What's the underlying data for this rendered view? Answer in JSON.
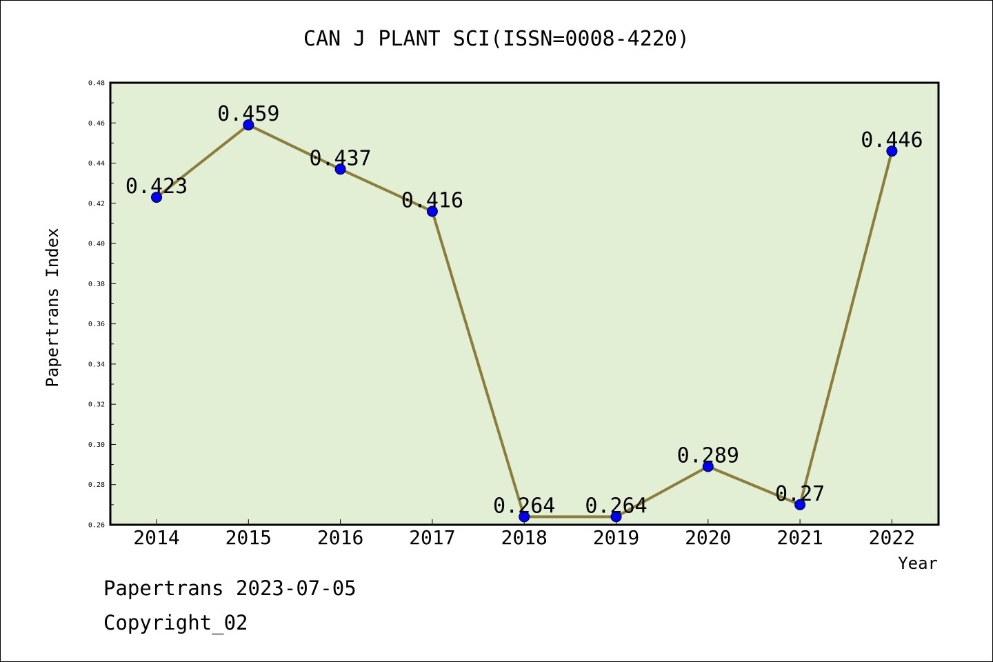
{
  "chart_data": {
    "type": "line",
    "title": "CAN J PLANT SCI(ISSN=0008-4220)",
    "xlabel": "Year",
    "ylabel": "Papertrans Index",
    "categories": [
      "2014",
      "2015",
      "2016",
      "2017",
      "2018",
      "2019",
      "2020",
      "2021",
      "2022"
    ],
    "values": [
      0.423,
      0.459,
      0.437,
      0.416,
      0.264,
      0.264,
      0.289,
      0.27,
      0.446
    ],
    "data_labels": [
      "0.423",
      "0.459",
      "0.437",
      "0.416",
      "0.264",
      "0.264",
      "0.289",
      "0.27",
      "0.446"
    ],
    "ylim": [
      0.26,
      0.48
    ],
    "yticks": [
      "0.26",
      "0.28",
      "0.30",
      "0.32",
      "0.34",
      "0.36",
      "0.38",
      "0.40",
      "0.42",
      "0.44",
      "0.46",
      "0.48"
    ],
    "grid": false,
    "legend": "none",
    "colors": {
      "plot_background": "#e2efd5",
      "line": "#8b7d3a",
      "marker": "#0000ff"
    }
  },
  "footer": {
    "line1": "Papertrans 2023-07-05",
    "line2": "Copyright_02"
  }
}
